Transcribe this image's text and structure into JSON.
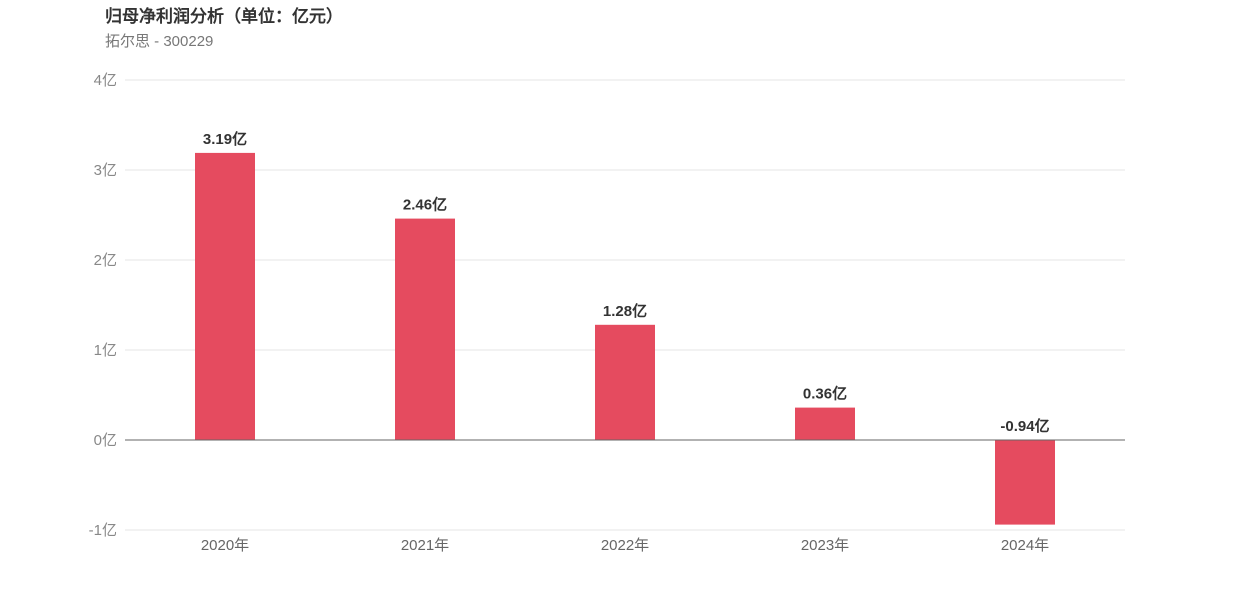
{
  "header": {
    "title": "归母净利润分析（单位：亿元）",
    "subtitle": "拓尔思 - 300229"
  },
  "chart_data": {
    "type": "bar",
    "title": "归母净利润分析（单位：亿元）",
    "subtitle": "拓尔思 - 300229",
    "categories": [
      "2020年",
      "2021年",
      "2022年",
      "2023年",
      "2024年"
    ],
    "values": [
      3.19,
      2.46,
      1.28,
      0.36,
      -0.94
    ],
    "data_labels": [
      "3.19亿",
      "2.46亿",
      "1.28亿",
      "0.36亿",
      "-0.94亿"
    ],
    "y_ticks": [
      "-1亿",
      "0亿",
      "1亿",
      "2亿",
      "3亿",
      "4亿"
    ],
    "ylim": [
      -1,
      4
    ],
    "grid": true,
    "bar_color": "#e54b5f",
    "legend": "none"
  }
}
